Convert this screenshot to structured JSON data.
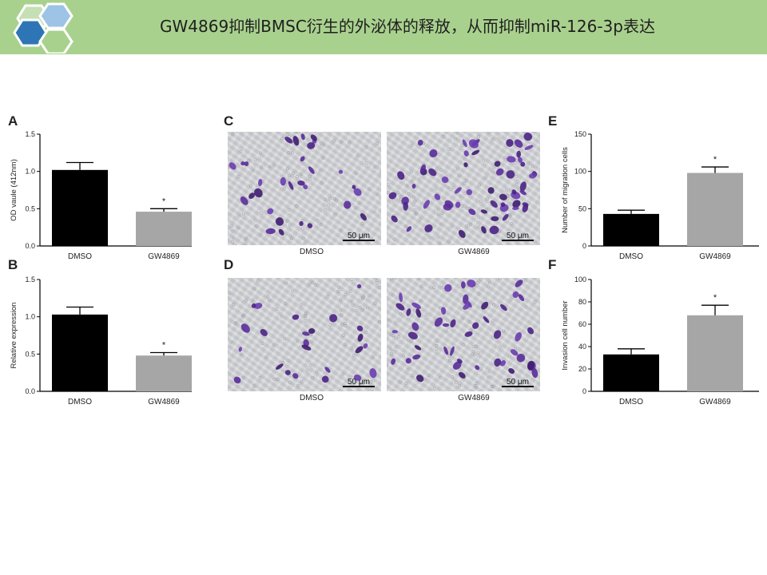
{
  "slide": {
    "title": "GW4869抑制BMSC衍生的外泌体的释放，从而抑制miR-126-3p表达"
  },
  "colors": {
    "header_green": "#a9d18e",
    "dmso_bar": "#000000",
    "gw4869_bar": "#a6a6a6",
    "cell_stain": "#5a2e9a"
  },
  "chart_data": [
    {
      "panel": "A",
      "type": "bar",
      "categories": [
        "DMSO",
        "GW4869"
      ],
      "values": [
        1.02,
        0.46
      ],
      "errors": [
        0.1,
        0.04
      ],
      "significance": [
        "",
        "*"
      ],
      "ylabel": "OD vaule (412nm)",
      "ylim": [
        0,
        1.5
      ],
      "yticks": [
        "0.0",
        "0.5",
        "1.0",
        "1.5"
      ]
    },
    {
      "panel": "B",
      "type": "bar",
      "categories": [
        "DMSO",
        "GW4869"
      ],
      "values": [
        1.03,
        0.48
      ],
      "errors": [
        0.1,
        0.04
      ],
      "significance": [
        "",
        "*"
      ],
      "ylabel": "Relative expression",
      "ylim": [
        0,
        1.5
      ],
      "yticks": [
        "0.0",
        "0.5",
        "1.0",
        "1.5"
      ]
    },
    {
      "panel": "E",
      "type": "bar",
      "categories": [
        "DMSO",
        "GW4869"
      ],
      "values": [
        43,
        98
      ],
      "errors": [
        5,
        8
      ],
      "significance": [
        "",
        "*"
      ],
      "ylabel": "Number of migration cells",
      "ylim": [
        0,
        150
      ],
      "yticks": [
        "0",
        "50",
        "100",
        "150"
      ]
    },
    {
      "panel": "F",
      "type": "bar",
      "categories": [
        "DMSO",
        "GW4869"
      ],
      "values": [
        33,
        68
      ],
      "errors": [
        5,
        9
      ],
      "significance": [
        "",
        "*"
      ],
      "ylabel": "Invasion cell number",
      "ylim": [
        0,
        100
      ],
      "yticks": [
        "0",
        "20",
        "40",
        "60",
        "80",
        "100"
      ]
    }
  ],
  "micrographs": {
    "C": {
      "panel": "C",
      "images": [
        {
          "caption": "DMSO",
          "scale": "50 μm",
          "cell_count": 30
        },
        {
          "caption": "GW4869",
          "scale": "50 μm",
          "cell_count": 60
        }
      ]
    },
    "D": {
      "panel": "D",
      "images": [
        {
          "caption": "DMSO",
          "scale": "50 μm",
          "cell_count": 24
        },
        {
          "caption": "GW4869",
          "scale": "50 μm",
          "cell_count": 48
        }
      ]
    }
  }
}
